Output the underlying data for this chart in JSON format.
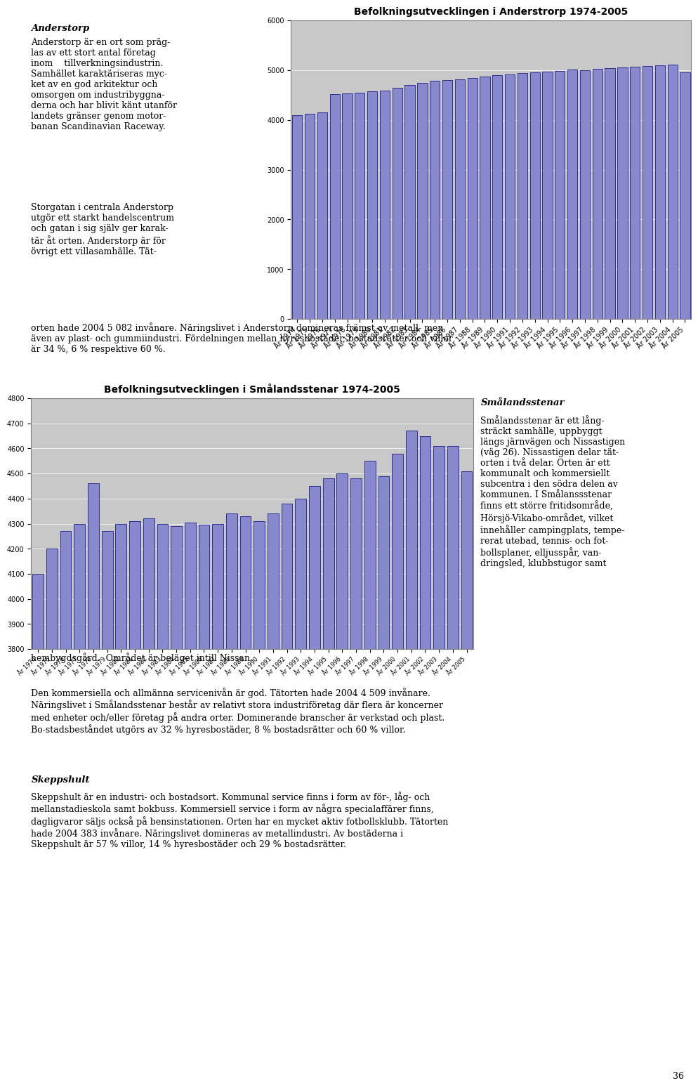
{
  "chart1_title": "Befolkningsutvecklingen i Anderstrorp 1974-2005",
  "chart1_years": [
    1974,
    1975,
    1976,
    1977,
    1978,
    1979,
    1980,
    1981,
    1982,
    1983,
    1984,
    1985,
    1986,
    1987,
    1988,
    1989,
    1990,
    1991,
    1992,
    1993,
    1994,
    1995,
    1996,
    1997,
    1998,
    1999,
    2000,
    2001,
    2002,
    2003,
    2004,
    2005
  ],
  "chart1_values": [
    4100,
    4120,
    4150,
    4520,
    4530,
    4550,
    4570,
    4590,
    4650,
    4700,
    4750,
    4780,
    4800,
    4820,
    4840,
    4870,
    4900,
    4920,
    4940,
    4960,
    4970,
    4990,
    5010,
    5000,
    5020,
    5040,
    5060,
    5070,
    5080,
    5100,
    5110,
    4950
  ],
  "chart1_ylim": [
    0,
    6000
  ],
  "chart1_yticks": [
    0,
    1000,
    2000,
    3000,
    4000,
    5000,
    6000
  ],
  "chart2_title": "Befolkningsutvecklingen i Smålandsstenar 1974-2005",
  "chart2_years": [
    1974,
    1975,
    1976,
    1977,
    1978,
    1979,
    1980,
    1981,
    1982,
    1983,
    1984,
    1985,
    1986,
    1987,
    1988,
    1989,
    1990,
    1991,
    1992,
    1993,
    1994,
    1995,
    1996,
    1997,
    1998,
    1999,
    2000,
    2001,
    2002,
    2003,
    2004,
    2005
  ],
  "chart2_values": [
    4100,
    4200,
    4270,
    4300,
    4460,
    4270,
    4300,
    4310,
    4320,
    4300,
    4290,
    4305,
    4295,
    4300,
    4340,
    4330,
    4310,
    4340,
    4380,
    4400,
    4450,
    4480,
    4500,
    4480,
    4550,
    4490,
    4580,
    4670,
    4650,
    4610,
    4610,
    4510
  ],
  "chart2_ylim": [
    3800,
    4800
  ],
  "chart2_yticks": [
    3800,
    3900,
    4000,
    4100,
    4200,
    4300,
    4400,
    4500,
    4600,
    4700,
    4800
  ],
  "bar_color": "#8888cc",
  "bar_edge_color": "#000080",
  "plot_bg_color": "#c8c8c8",
  "fig_bg_color": "#ffffff",
  "title_fontsize": 10,
  "tick_fontsize": 7,
  "chart_border_color": "#808080"
}
